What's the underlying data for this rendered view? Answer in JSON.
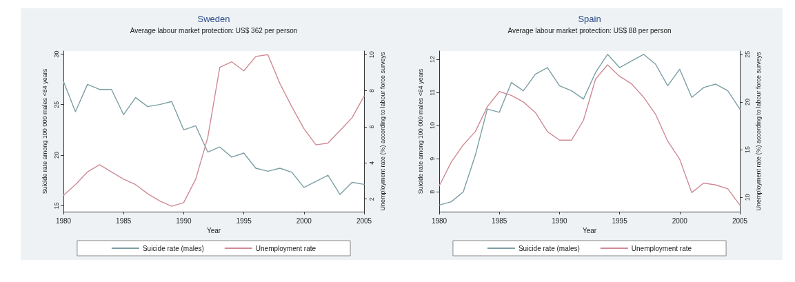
{
  "chart_data": [
    {
      "type": "line",
      "title": "Sweden",
      "subtitle": "Average labour market protection: US$ 362 per person",
      "xlabel": "Year",
      "ylabel": "Suicide rate among 100 000 males <64 years",
      "y2label": "Unemployment rate (%) according to labour force surveys",
      "x": [
        1980,
        1981,
        1982,
        1983,
        1984,
        1985,
        1986,
        1987,
        1988,
        1989,
        1990,
        1991,
        1992,
        1993,
        1994,
        1995,
        1996,
        1997,
        1998,
        1999,
        2000,
        2001,
        2002,
        2003,
        2004,
        2005
      ],
      "series": [
        {
          "name": "Suicide rate (males)",
          "color": "#7a9ea3",
          "values": [
            27.3,
            24.3,
            27.0,
            26.5,
            26.5,
            24.0,
            25.7,
            24.8,
            25.0,
            25.3,
            22.5,
            22.9,
            20.3,
            20.8,
            19.8,
            20.2,
            18.7,
            18.4,
            18.7,
            18.3,
            16.8,
            17.4,
            18.0,
            16.1,
            17.3,
            17.1
          ]
        },
        {
          "name": "Unemployment rate",
          "color": "#cf8a94",
          "axis": "y2",
          "values": [
            2.2,
            2.8,
            3.5,
            3.9,
            3.5,
            3.1,
            2.8,
            2.3,
            1.9,
            1.6,
            1.8,
            3.1,
            5.4,
            9.3,
            9.6,
            9.1,
            9.9,
            10.0,
            8.4,
            7.1,
            5.9,
            5.0,
            5.1,
            5.8,
            6.5,
            7.7
          ]
        }
      ],
      "xlim": [
        1980,
        2005
      ],
      "xticks": [
        1980,
        1985,
        1990,
        1995,
        2000,
        2005
      ],
      "ylim": [
        14.4,
        30.3
      ],
      "yticks": [
        15,
        20,
        25,
        30
      ],
      "y2lim": [
        1.3,
        10.2
      ],
      "y2ticks": [
        2,
        4,
        6,
        8,
        10
      ],
      "legend": "bottom",
      "marker": "none",
      "line_style": "solid",
      "grid": false
    },
    {
      "type": "line",
      "title": "Spain",
      "subtitle": "Average labour market protection: US$ 88 per person",
      "xlabel": "Year",
      "ylabel": "Suicide rate among 100 000 males <64 years",
      "y2label": "Unemployment rate (%) according to labour force surveys",
      "x": [
        1980,
        1981,
        1982,
        1983,
        1984,
        1985,
        1986,
        1987,
        1988,
        1989,
        1990,
        1991,
        1992,
        1993,
        1994,
        1995,
        1996,
        1997,
        1998,
        1999,
        2000,
        2001,
        2002,
        2003,
        2004,
        2005
      ],
      "series": [
        {
          "name": "Suicide rate (males)",
          "color": "#7a9ea3",
          "values": [
            7.6,
            7.7,
            8.0,
            9.1,
            10.5,
            10.4,
            11.3,
            11.05,
            11.55,
            11.75,
            11.2,
            11.05,
            10.8,
            11.6,
            12.15,
            11.75,
            11.95,
            12.15,
            11.85,
            11.2,
            11.7,
            10.85,
            11.15,
            11.25,
            11.05,
            10.5
          ]
        },
        {
          "name": "Unemployment rate",
          "color": "#cf8a94",
          "axis": "y2",
          "values": [
            11.2,
            13.7,
            15.5,
            16.9,
            19.5,
            21.1,
            20.7,
            20.0,
            18.9,
            16.9,
            16.0,
            16.0,
            18.1,
            22.4,
            23.9,
            22.7,
            21.9,
            20.5,
            18.7,
            15.9,
            14.0,
            10.5,
            11.5,
            11.3,
            10.9,
            9.2
          ]
        }
      ],
      "xlim": [
        1980,
        2005
      ],
      "xticks": [
        1980,
        1985,
        1990,
        1995,
        2000,
        2005
      ],
      "ylim": [
        7.4,
        12.25
      ],
      "yticks": [
        8,
        9,
        10,
        11,
        12
      ],
      "y2lim": [
        8.5,
        25.35
      ],
      "y2ticks": [
        10,
        15,
        20,
        25
      ],
      "legend": "bottom",
      "marker": "none",
      "line_style": "solid",
      "grid": false
    }
  ]
}
